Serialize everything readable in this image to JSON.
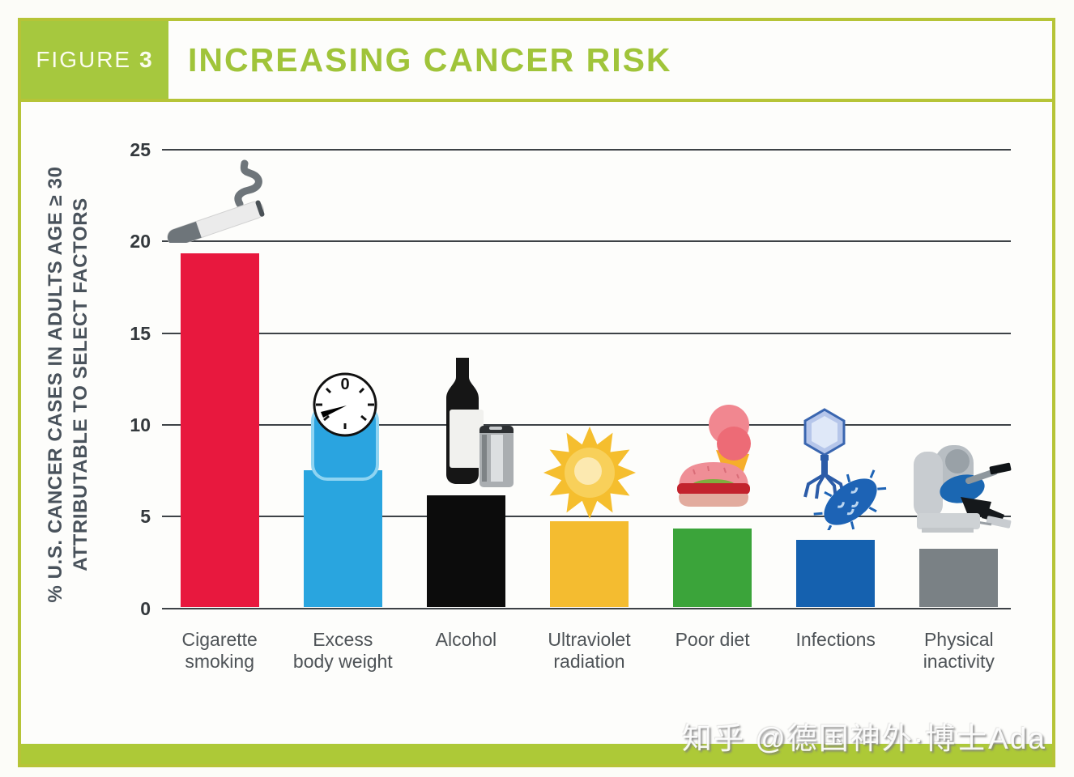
{
  "figure": {
    "label": "FIGURE",
    "number": "3",
    "title": "INCREASING CANCER RISK"
  },
  "watermark": "知乎 @德国神外·博士Ada",
  "colors": {
    "frame_green": "#b6c437",
    "figure_box_green": "#a6c83e",
    "title_green": "#a0c43a",
    "bottom_band_green": "#adc937",
    "gridline": "#3d4246"
  },
  "chart_data": {
    "type": "bar",
    "title": "INCREASING CANCER RISK",
    "ylabel_line1": "% U.S. CANCER CASES IN ADULTS AGE ≥ 30",
    "ylabel_line2": "ATTRIBUTABLE TO SELECT FACTORS",
    "ylim": [
      0,
      25
    ],
    "grid": true,
    "yticks": [
      25,
      20,
      15,
      10,
      5,
      0
    ],
    "ytick_labels": [
      "25",
      "20",
      "15",
      "10",
      "5",
      "0"
    ],
    "categories": [
      "Cigarette smoking",
      "Excess body weight",
      "Alcohol",
      "Ultraviolet radiation",
      "Poor diet",
      "Infections",
      "Physical inactivity"
    ],
    "category_lines": [
      [
        "Cigarette",
        "smoking"
      ],
      [
        "Excess",
        "body weight"
      ],
      [
        "Alcohol",
        ""
      ],
      [
        "Ultraviolet",
        "radiation"
      ],
      [
        "Poor diet",
        ""
      ],
      [
        "Infections",
        ""
      ],
      [
        "Physical",
        "inactivity"
      ]
    ],
    "values": [
      19.3,
      7.5,
      6.1,
      4.7,
      4.3,
      3.7,
      3.2
    ],
    "bar_colors": [
      "#e8183e",
      "#29a5df",
      "#0c0c0c",
      "#f4bc30",
      "#3ba43a",
      "#1561af",
      "#7a8185"
    ],
    "icons": [
      "cigarette-icon",
      "bathroom-scale-icon",
      "wine-bottle-and-can-icon",
      "sun-icon",
      "burger-and-ice-cream-icon",
      "virus-and-bacteria-icon",
      "recliner-person-icon"
    ],
    "legend": null
  }
}
